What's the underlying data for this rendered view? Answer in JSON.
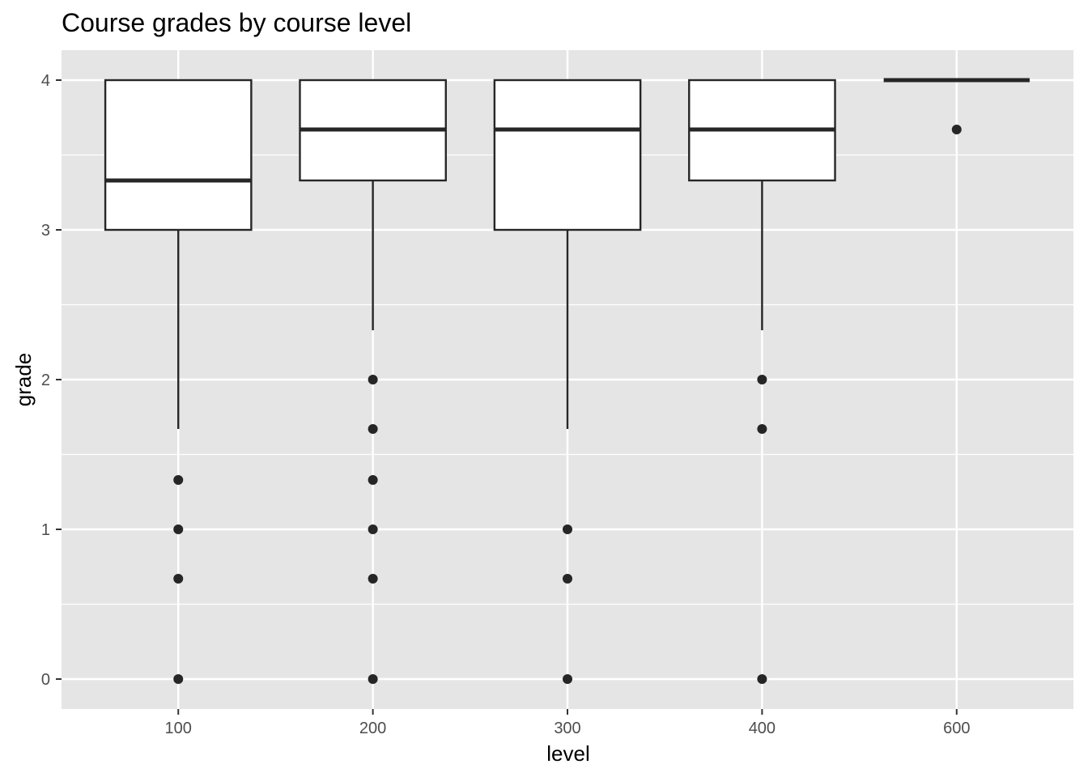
{
  "colors": {
    "panel_background": "#e5e5e5",
    "gridline": "#ffffff",
    "box_fill": "#ffffff",
    "box_stroke": "#262626",
    "point": "#262626",
    "tick_mark": "#333333",
    "tick_text": "#4d4d4d"
  },
  "chart_data": {
    "type": "boxplot",
    "title": "Course grades by course level",
    "xlabel": "level",
    "ylabel": "grade",
    "ylim": [
      -0.2,
      4.2
    ],
    "yticks": [
      0,
      1,
      2,
      3,
      4
    ],
    "grid": true,
    "legend": "none",
    "categories": [
      "100",
      "200",
      "300",
      "400",
      "600"
    ],
    "boxes": [
      {
        "category": "100",
        "lower_whisker": 1.67,
        "q1": 3.0,
        "median": 3.33,
        "q3": 4.0,
        "upper_whisker": 4.0,
        "outliers": [
          1.33,
          1.0,
          0.67,
          0.0
        ]
      },
      {
        "category": "200",
        "lower_whisker": 2.33,
        "q1": 3.33,
        "median": 3.67,
        "q3": 4.0,
        "upper_whisker": 4.0,
        "outliers": [
          2.0,
          1.67,
          1.33,
          1.0,
          0.67,
          0.0
        ]
      },
      {
        "category": "300",
        "lower_whisker": 1.67,
        "q1": 3.0,
        "median": 3.67,
        "q3": 4.0,
        "upper_whisker": 4.0,
        "outliers": [
          1.0,
          0.67,
          0.0
        ]
      },
      {
        "category": "400",
        "lower_whisker": 2.33,
        "q1": 3.33,
        "median": 3.67,
        "q3": 4.0,
        "upper_whisker": 4.0,
        "outliers": [
          2.0,
          1.67,
          0.0
        ]
      },
      {
        "category": "600",
        "lower_whisker": 4.0,
        "q1": 4.0,
        "median": 4.0,
        "q3": 4.0,
        "upper_whisker": 4.0,
        "outliers": [
          3.67
        ]
      }
    ]
  }
}
